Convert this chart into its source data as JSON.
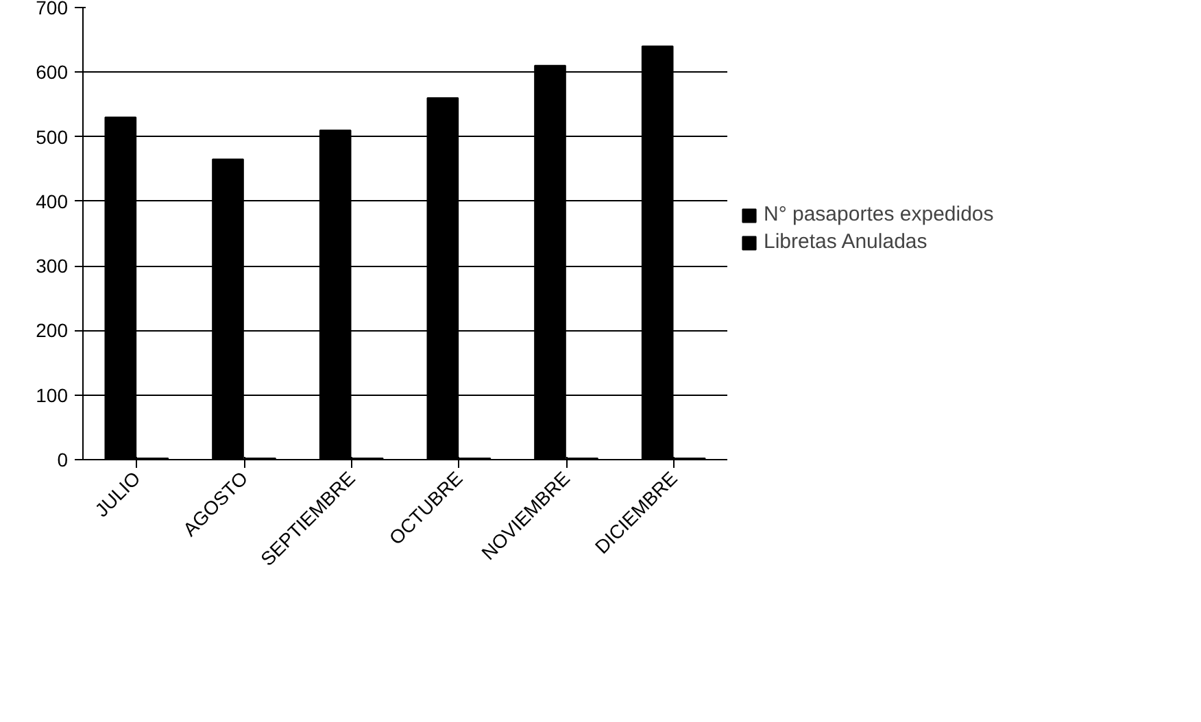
{
  "chart_data": {
    "type": "bar",
    "categories": [
      "JULIO",
      "AGOSTO",
      "SEPTIEMBRE",
      "OCTUBRE",
      "NOVIEMBRE",
      "DICIEMBRE"
    ],
    "series": [
      {
        "name": "N° pasaportes expedidos",
        "color": "#000000",
        "values": [
          530,
          465,
          510,
          560,
          610,
          640
        ]
      },
      {
        "name": "Libretas Anuladas",
        "color": "#000000",
        "values": [
          2,
          2,
          2,
          2,
          2,
          2
        ]
      }
    ],
    "ylim": [
      0,
      700
    ],
    "yticks": [
      0,
      100,
      200,
      300,
      400,
      500,
      600,
      700
    ],
    "grid": "y",
    "legend": "right"
  }
}
